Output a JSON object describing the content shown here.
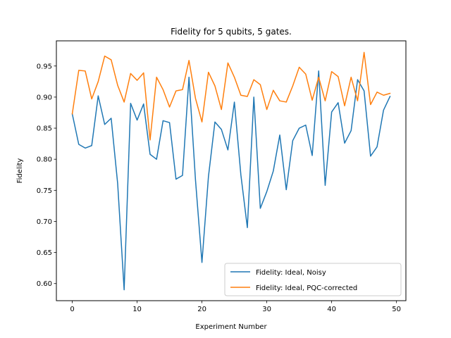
{
  "chart_data": {
    "type": "line",
    "title": "Fidelity for 5 qubits, 5 gates.",
    "xlabel": "Experiment Number",
    "ylabel": "Fidelity",
    "xlim": [
      -2.45,
      51.45
    ],
    "ylim": [
      0.5725,
      0.9905
    ],
    "xticks": [
      0,
      10,
      20,
      30,
      40,
      50
    ],
    "xtick_labels": [
      "0",
      "10",
      "20",
      "30",
      "40",
      "50"
    ],
    "yticks": [
      0.6,
      0.65,
      0.7,
      0.75,
      0.8,
      0.85,
      0.9,
      0.95
    ],
    "ytick_labels": [
      "0.60",
      "0.65",
      "0.70",
      "0.75",
      "0.80",
      "0.85",
      "0.90",
      "0.95"
    ],
    "grid": false,
    "legend_position": "lower-right",
    "x": [
      0,
      1,
      2,
      3,
      4,
      5,
      6,
      7,
      8,
      9,
      10,
      11,
      12,
      13,
      14,
      15,
      16,
      17,
      18,
      19,
      20,
      21,
      22,
      23,
      24,
      25,
      26,
      27,
      28,
      29,
      30,
      31,
      32,
      33,
      34,
      35,
      36,
      37,
      38,
      39,
      40,
      41,
      42,
      43,
      44,
      45,
      46,
      47,
      48,
      49
    ],
    "series": [
      {
        "name": "Fidelity: Ideal, Noisy",
        "color": "#1f77b4",
        "values": [
          0.873,
          0.824,
          0.818,
          0.822,
          0.902,
          0.856,
          0.866,
          0.761,
          0.59,
          0.89,
          0.863,
          0.889,
          0.808,
          0.8,
          0.862,
          0.859,
          0.768,
          0.774,
          0.932,
          0.767,
          0.634,
          0.772,
          0.86,
          0.848,
          0.815,
          0.892,
          0.775,
          0.69,
          0.9,
          0.721,
          0.748,
          0.781,
          0.839,
          0.751,
          0.83,
          0.85,
          0.855,
          0.806,
          0.942,
          0.758,
          0.876,
          0.891,
          0.826,
          0.846,
          0.928,
          0.91,
          0.805,
          0.82,
          0.879,
          0.901
        ]
      },
      {
        "name": "Fidelity: Ideal, PQC-corrected",
        "color": "#ff7f0e",
        "values": [
          0.873,
          0.943,
          0.942,
          0.897,
          0.925,
          0.966,
          0.96,
          0.919,
          0.892,
          0.938,
          0.927,
          0.939,
          0.831,
          0.932,
          0.912,
          0.884,
          0.91,
          0.912,
          0.959,
          0.898,
          0.86,
          0.94,
          0.918,
          0.88,
          0.955,
          0.932,
          0.903,
          0.901,
          0.928,
          0.92,
          0.88,
          0.911,
          0.894,
          0.892,
          0.918,
          0.948,
          0.937,
          0.895,
          0.932,
          0.894,
          0.941,
          0.933,
          0.886,
          0.932,
          0.894,
          0.972,
          0.888,
          0.908,
          0.903,
          0.906
        ]
      }
    ]
  }
}
